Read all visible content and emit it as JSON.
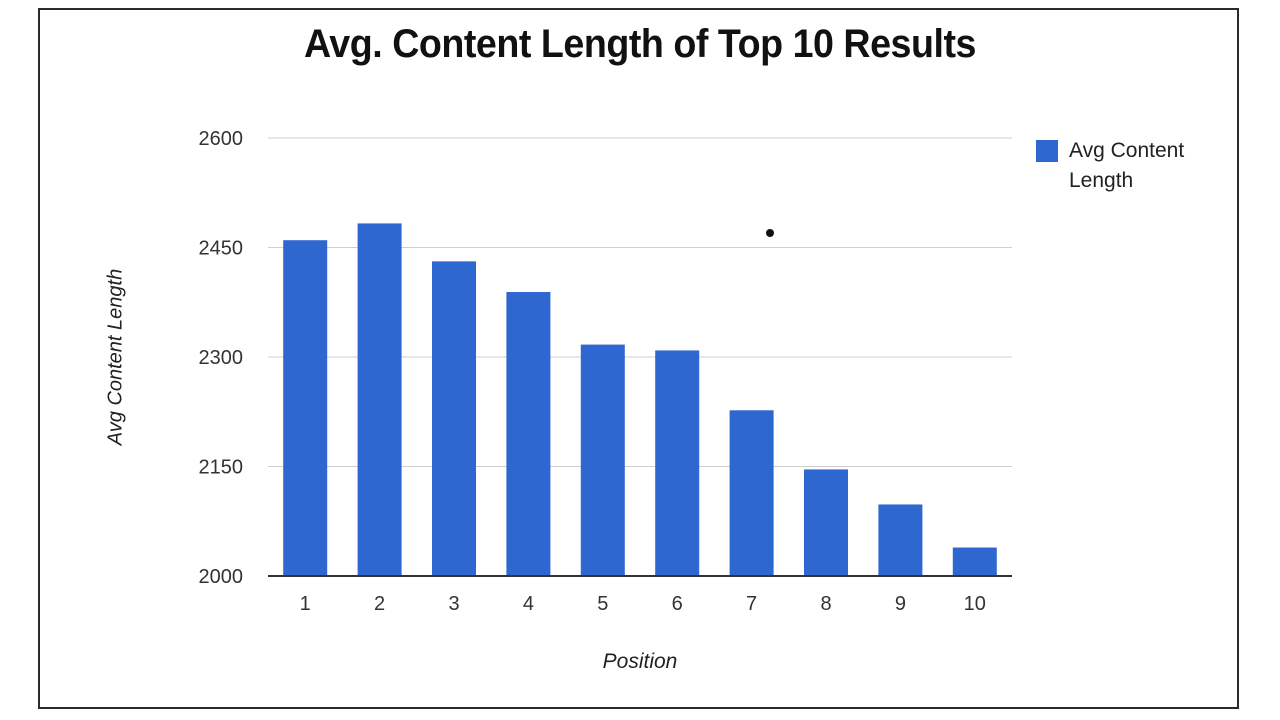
{
  "chart_data": {
    "type": "bar",
    "title": "Avg. Content Length of Top 10 Results",
    "xlabel": "Position",
    "ylabel": "Avg Content Length",
    "categories": [
      "1",
      "2",
      "3",
      "4",
      "5",
      "6",
      "7",
      "8",
      "9",
      "10"
    ],
    "series": [
      {
        "name": "Avg Content Length",
        "values": [
          2460,
          2483,
          2431,
          2389,
          2317,
          2309,
          2227,
          2146,
          2098,
          2039
        ],
        "color": "#2f67d0"
      }
    ],
    "ylim": [
      2000,
      2600
    ],
    "yticks": [
      "2000",
      "2150",
      "2300",
      "2450",
      "2600"
    ],
    "grid": true,
    "legend": "right"
  }
}
